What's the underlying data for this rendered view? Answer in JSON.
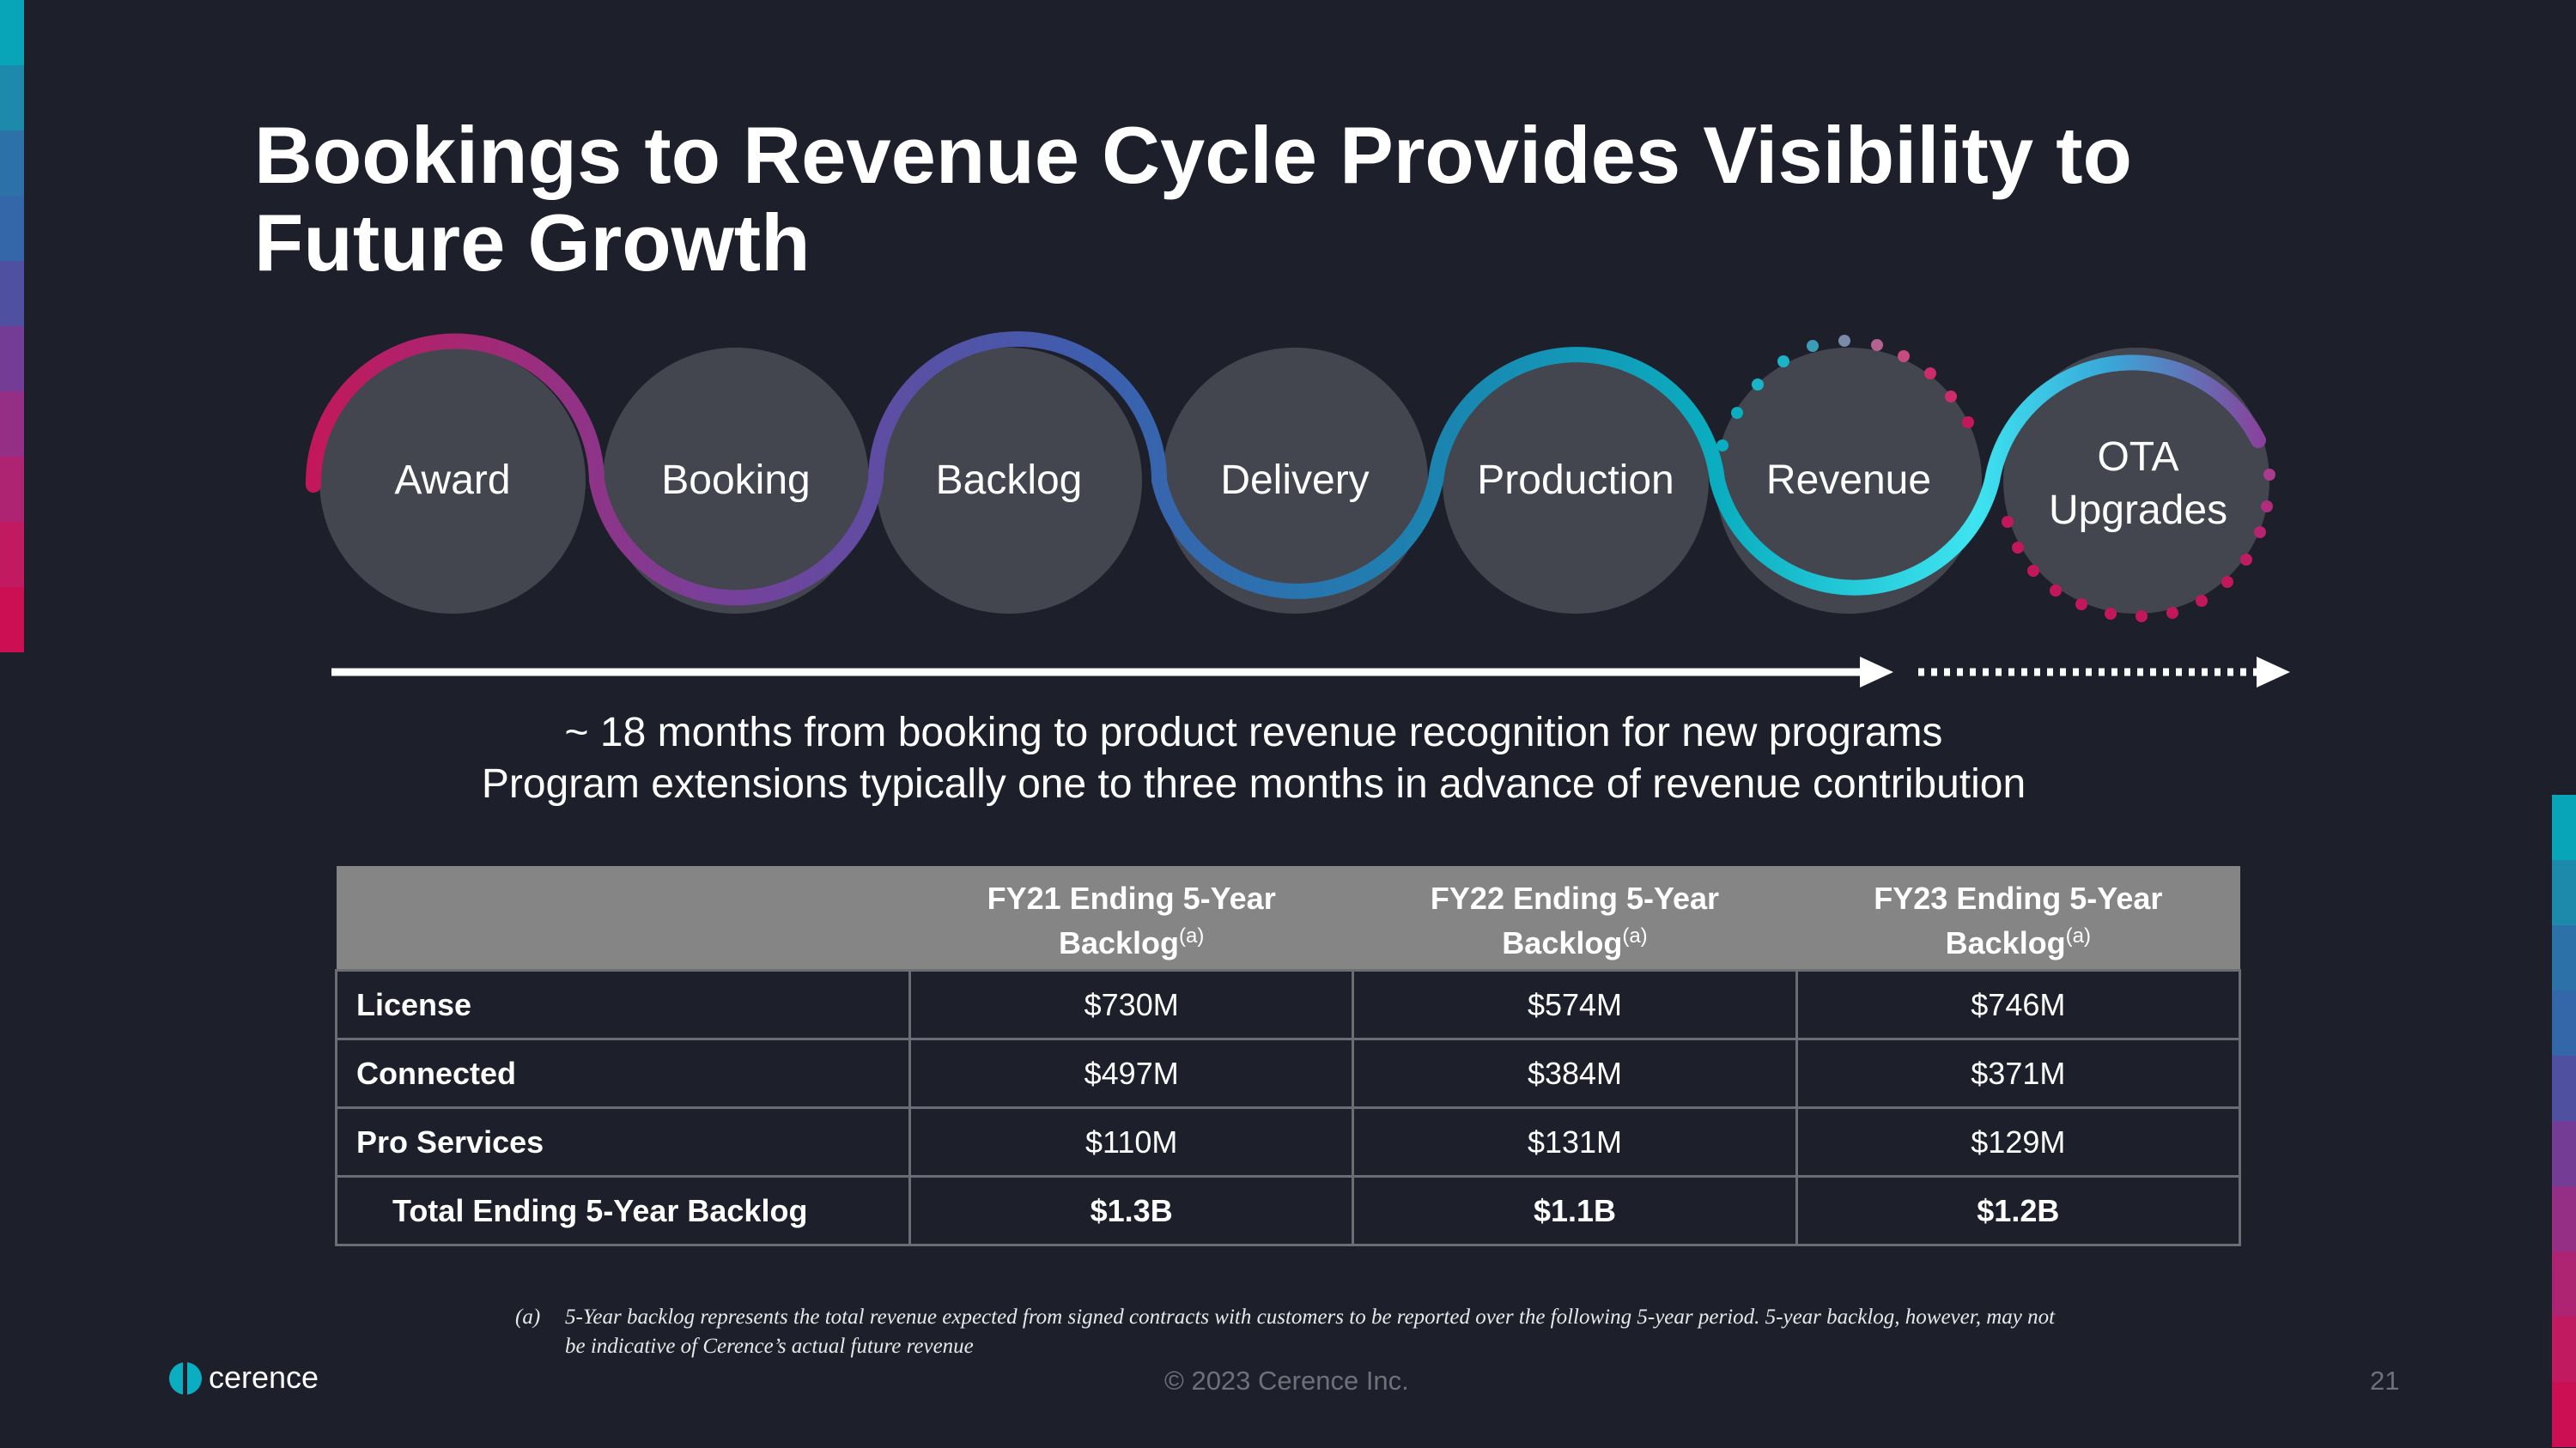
{
  "title": "Bookings to Revenue Cycle Provides Visibility to Future Growth",
  "cycle_steps": [
    "Award",
    "Booking",
    "Backlog",
    "Delivery",
    "Production",
    "Revenue",
    "OTA",
    "Upgrades"
  ],
  "captions": [
    "~ 18 months from booking to product revenue recognition for new programs",
    "Program extensions typically one to three months in advance of revenue contribution"
  ],
  "table": {
    "headers": [
      {
        "label": "FY21 Ending 5-Year",
        "label2": "Backlog",
        "sup": "(a)"
      },
      {
        "label": "FY22 Ending 5-Year",
        "label2": "Backlog",
        "sup": "(a)"
      },
      {
        "label": "FY23 Ending 5-Year",
        "label2": "Backlog",
        "sup": "(a)"
      }
    ],
    "rows": [
      {
        "label": "License",
        "values": [
          "$730M",
          "$574M",
          "$746M"
        ]
      },
      {
        "label": "Connected",
        "values": [
          "$497M",
          "$384M",
          "$371M"
        ]
      },
      {
        "label": "Pro Services",
        "values": [
          "$110M",
          "$131M",
          "$129M"
        ]
      },
      {
        "label": "Total Ending 5-Year Backlog",
        "values": [
          "$1.3B",
          "$1.1B",
          "$1.2B"
        ]
      }
    ]
  },
  "footnote": {
    "tag": "(a)",
    "text": "5-Year backlog represents the total revenue expected from signed contracts with customers to be reported over the following 5-year period. 5-year backlog, however, may not be indicative of Cerence’s actual future revenue"
  },
  "logo_text": "cerence",
  "copyright": "© 2023 Cerence Inc.",
  "page_number": "21",
  "colors": {
    "background": "#1d1f2b",
    "circle": "#43454f",
    "magenta": "#c2185b",
    "purple": "#6a4fa7",
    "blue": "#2f6fb3",
    "teal": "#0aa2b8",
    "cyan": "#3de4f0",
    "table_header": "#858585"
  }
}
